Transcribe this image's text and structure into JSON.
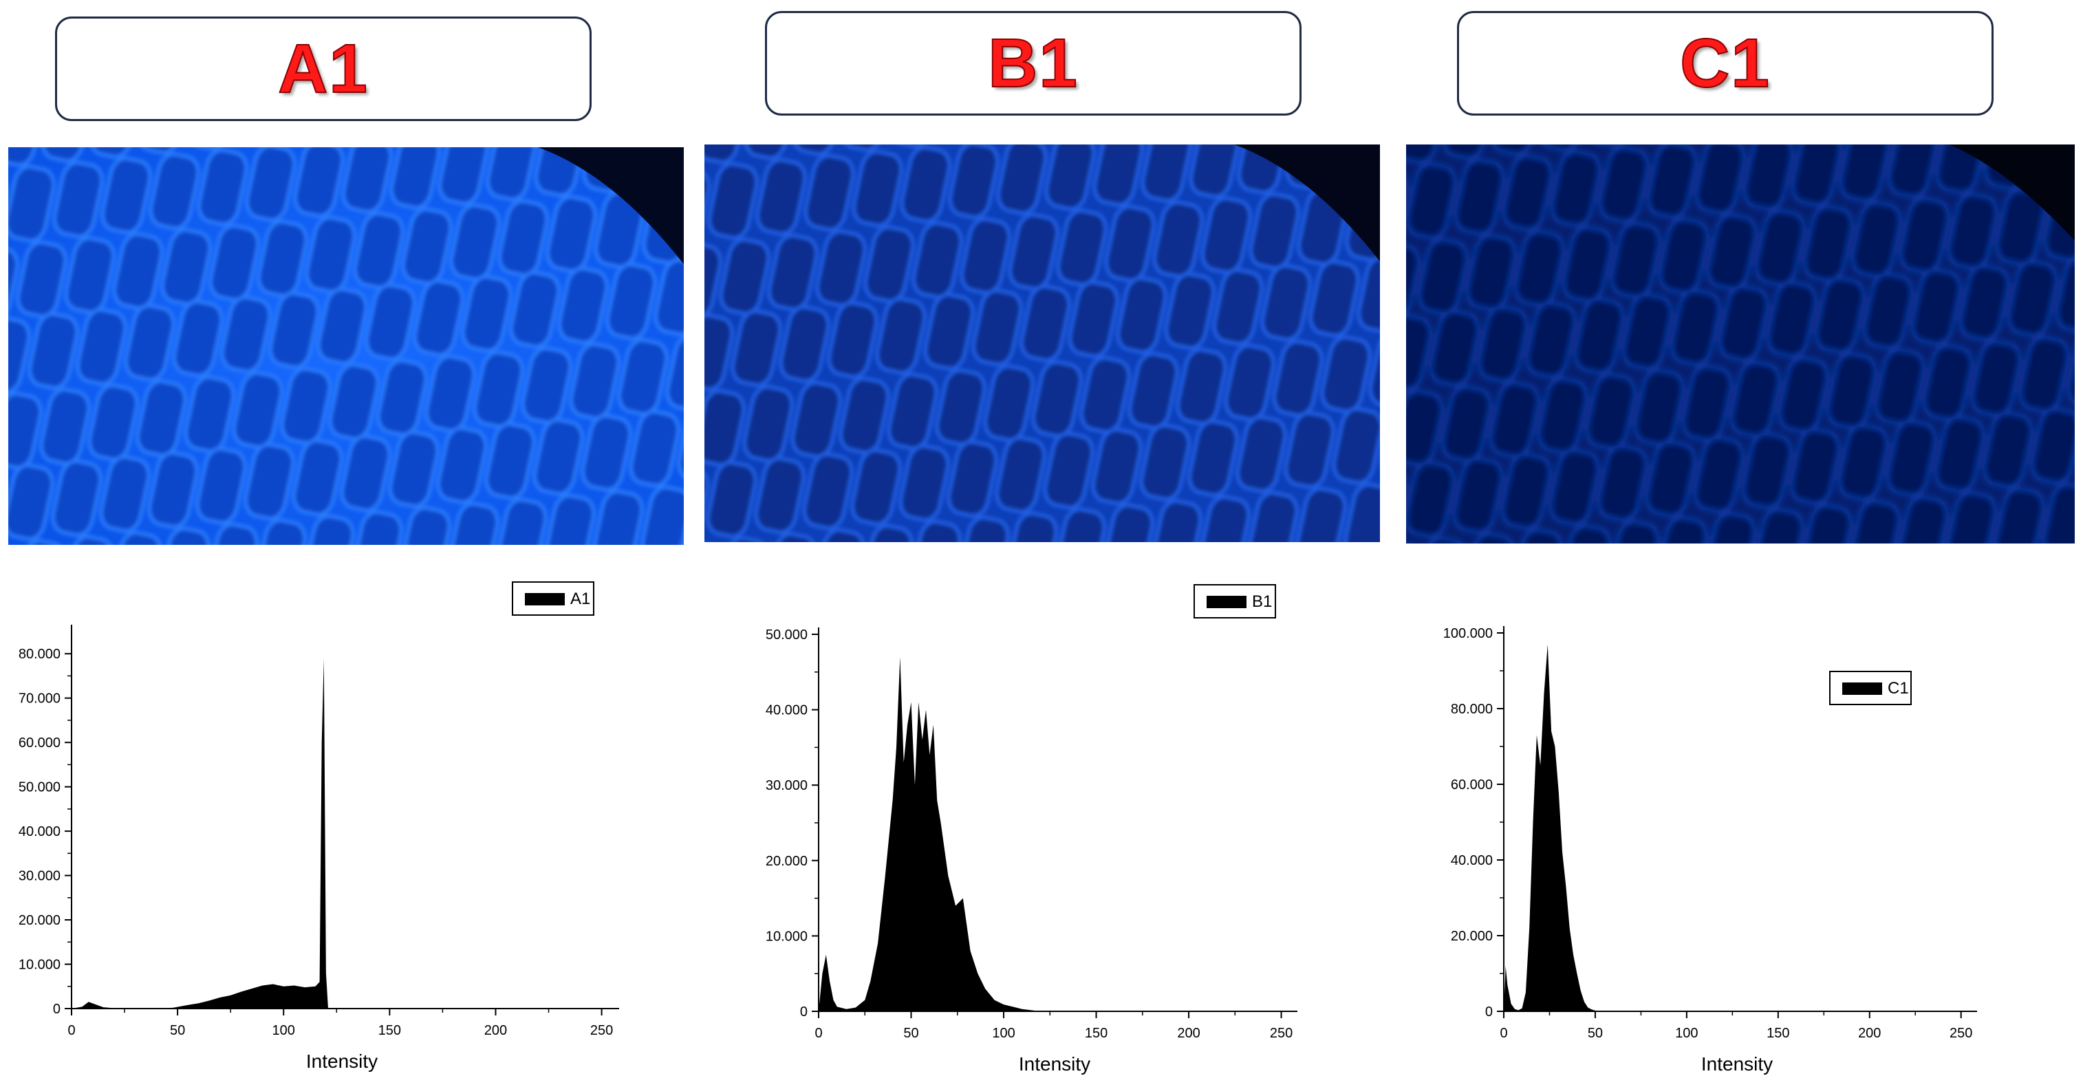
{
  "panels": [
    {
      "id": "A1",
      "title": "A1",
      "image": {
        "description_color": "#0b5cff"
      }
    },
    {
      "id": "B1",
      "title": "B1",
      "image": {
        "description_color": "#0a3fb5"
      }
    },
    {
      "id": "C1",
      "title": "C1",
      "image": {
        "description_color": "#06217a"
      }
    }
  ],
  "colors": {
    "title_red": "#ff1a1a",
    "histogram_fill": "#000000",
    "frame": "#1f2a44"
  },
  "chart_data": [
    {
      "type": "area",
      "xlabel": "Intensity",
      "ylabel": "",
      "xlim": [
        0,
        255
      ],
      "ylim": [
        0,
        85000
      ],
      "xticks": [
        0,
        50,
        100,
        150,
        200,
        250
      ],
      "yticks": [
        0,
        10000,
        20000,
        30000,
        40000,
        50000,
        60000,
        70000,
        80000
      ],
      "ytick_labels": [
        "0",
        "10.000",
        "20.000",
        "30.000",
        "40.000",
        "50.000",
        "60.000",
        "70.000",
        "80.000"
      ],
      "legend": {
        "label": "A1",
        "position": "top-right"
      },
      "series": [
        {
          "name": "A1",
          "x": [
            0,
            5,
            8,
            12,
            15,
            20,
            30,
            40,
            48,
            55,
            60,
            65,
            70,
            75,
            80,
            85,
            90,
            95,
            100,
            105,
            110,
            115,
            117,
            118,
            119,
            120,
            121,
            125,
            150,
            200,
            255
          ],
          "y": [
            0,
            400,
            1500,
            800,
            300,
            100,
            0,
            0,
            200,
            800,
            1200,
            1800,
            2500,
            3000,
            3800,
            4500,
            5200,
            5500,
            5000,
            5200,
            4800,
            5000,
            6000,
            60000,
            79000,
            8000,
            0,
            0,
            0,
            0,
            0
          ]
        }
      ]
    },
    {
      "type": "area",
      "xlabel": "Intensity",
      "ylabel": "",
      "xlim": [
        0,
        255
      ],
      "ylim": [
        0,
        50000
      ],
      "xticks": [
        0,
        50,
        100,
        150,
        200,
        250
      ],
      "yticks": [
        0,
        10000,
        20000,
        30000,
        40000,
        50000
      ],
      "ytick_labels": [
        "0",
        "10.000",
        "20.000",
        "30.000",
        "40.000",
        "50.000"
      ],
      "legend": {
        "label": "B1",
        "position": "top-right"
      },
      "series": [
        {
          "name": "B1",
          "x": [
            0,
            2,
            4,
            6,
            8,
            10,
            15,
            20,
            25,
            28,
            32,
            36,
            40,
            42,
            44,
            46,
            48,
            50,
            52,
            54,
            56,
            58,
            60,
            62,
            64,
            66,
            70,
            74,
            78,
            82,
            86,
            90,
            95,
            100,
            105,
            110,
            120,
            150,
            200,
            255
          ],
          "y": [
            0,
            5000,
            7500,
            4000,
            1500,
            600,
            300,
            500,
            1500,
            4000,
            9000,
            18000,
            28000,
            35000,
            47000,
            33000,
            38000,
            41000,
            30000,
            41000,
            36000,
            40000,
            34000,
            38000,
            28000,
            25000,
            18000,
            14000,
            15000,
            8000,
            5000,
            3000,
            1500,
            900,
            600,
            300,
            0,
            0,
            0,
            0
          ]
        }
      ]
    },
    {
      "type": "area",
      "xlabel": "Intensity",
      "ylabel": "",
      "xlim": [
        0,
        255
      ],
      "ylim": [
        0,
        100000
      ],
      "xticks": [
        0,
        50,
        100,
        150,
        200,
        250
      ],
      "yticks": [
        0,
        20000,
        40000,
        60000,
        80000,
        100000
      ],
      "ytick_labels": [
        "0",
        "20.000",
        "40.000",
        "60.000",
        "80.000",
        "100.000"
      ],
      "legend": {
        "label": "C1",
        "position": "top-right"
      },
      "series": [
        {
          "name": "C1",
          "x": [
            0,
            1,
            2,
            4,
            6,
            8,
            10,
            12,
            14,
            16,
            18,
            20,
            22,
            24,
            26,
            28,
            30,
            32,
            34,
            36,
            38,
            40,
            42,
            44,
            46,
            48,
            50,
            55,
            60,
            100,
            200,
            255
          ],
          "y": [
            0,
            12000,
            7000,
            2000,
            600,
            300,
            800,
            5000,
            22000,
            50000,
            73000,
            65000,
            84000,
            97000,
            74000,
            70000,
            58000,
            42000,
            33000,
            22000,
            15000,
            10000,
            5500,
            2500,
            1000,
            500,
            200,
            0,
            0,
            0,
            0,
            0
          ]
        }
      ]
    }
  ]
}
